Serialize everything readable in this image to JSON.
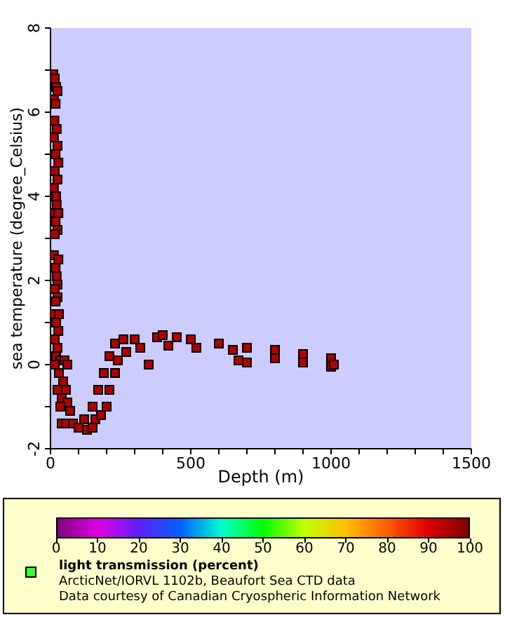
{
  "chart_data": {
    "type": "scatter",
    "xlabel": "Depth (m)",
    "ylabel": "sea temperature (degree_Celsius)",
    "x": [
      10,
      15,
      20,
      25,
      12,
      18,
      14,
      22,
      12,
      25,
      18,
      28,
      15,
      25,
      12,
      20,
      22,
      15,
      28,
      18,
      25,
      15,
      12,
      28,
      18,
      22,
      25,
      15,
      25,
      18,
      12,
      30,
      20,
      28,
      15,
      25,
      20,
      35,
      15,
      50,
      60,
      30,
      45,
      25,
      55,
      40,
      60,
      35,
      70,
      40,
      55,
      80,
      100,
      130,
      150,
      120,
      160,
      180,
      150,
      200,
      170,
      210,
      190,
      230,
      210,
      240,
      230,
      270,
      260,
      300,
      320,
      350,
      380,
      400,
      420,
      450,
      500,
      520,
      600,
      650,
      670,
      700,
      700,
      800,
      800,
      900,
      900,
      1000,
      1000,
      1010
    ],
    "values": [
      6.9,
      6.8,
      6.6,
      6.5,
      6.3,
      6.2,
      5.8,
      5.6,
      5.4,
      5.2,
      5.0,
      4.8,
      4.6,
      4.4,
      4.2,
      4.0,
      3.8,
      3.6,
      3.6,
      3.4,
      3.2,
      3.1,
      2.6,
      2.5,
      2.3,
      2.1,
      1.9,
      1.8,
      1.6,
      1.5,
      1.2,
      1.2,
      1.0,
      0.8,
      0.6,
      0.4,
      0.2,
      0.1,
      0.0,
      0.1,
      0.0,
      -0.2,
      -0.4,
      -0.6,
      -0.6,
      -0.8,
      -0.9,
      -1.0,
      -1.1,
      -1.4,
      -1.4,
      -1.4,
      -1.5,
      -1.55,
      -1.5,
      -1.3,
      -1.3,
      -1.2,
      -1.0,
      -1.0,
      -0.6,
      -0.6,
      -0.2,
      -0.2,
      0.2,
      0.1,
      0.5,
      0.3,
      0.6,
      0.6,
      0.4,
      0.0,
      0.65,
      0.7,
      0.45,
      0.65,
      0.6,
      0.4,
      0.5,
      0.35,
      0.1,
      0.05,
      0.4,
      0.35,
      0.15,
      0.25,
      0.05,
      0.15,
      -0.05,
      0.0
    ],
    "cvalues": [
      95,
      95,
      95,
      95,
      95,
      95,
      95,
      95,
      95,
      95,
      95,
      95,
      95,
      95,
      95,
      95,
      95,
      95,
      95,
      95,
      95,
      95,
      95,
      95,
      95,
      95,
      95,
      95,
      95,
      95,
      95,
      95,
      95,
      95,
      95,
      95,
      95,
      95,
      95,
      95,
      95,
      95,
      95,
      95,
      95,
      95,
      95,
      95,
      95,
      95,
      95,
      95,
      95,
      95,
      95,
      95,
      95,
      95,
      95,
      95,
      95,
      95,
      95,
      95,
      95,
      95,
      95,
      95,
      95,
      95,
      95,
      95,
      95,
      95,
      95,
      95,
      95,
      95,
      95,
      95,
      95,
      95,
      95,
      95,
      95,
      95,
      95,
      95,
      95,
      95
    ],
    "marker": "square",
    "xlim": [
      0,
      1500
    ],
    "xticks": [
      0,
      {
        "value": 100,
        "label": null
      },
      {
        "value": 200,
        "label": null
      },
      {
        "value": 300,
        "label": null
      },
      {
        "value": 400,
        "label": null
      },
      500,
      {
        "value": 600,
        "label": null
      },
      {
        "value": 700,
        "label": null
      },
      {
        "value": 800,
        "label": null
      },
      {
        "value": 900,
        "label": null
      },
      1000,
      {
        "value": 1100,
        "label": null
      },
      {
        "value": 1200,
        "label": null
      },
      {
        "value": 1300,
        "label": null
      },
      {
        "value": 1400,
        "label": null
      },
      1500
    ],
    "ylim": [
      -2,
      8
    ],
    "yticks": [
      -2,
      {
        "value": -1,
        "label": null
      },
      0,
      {
        "value": 1,
        "label": null
      },
      2,
      {
        "value": 3,
        "label": null
      },
      4,
      {
        "value": 5,
        "label": null
      },
      6,
      {
        "value": 7,
        "label": null
      },
      8
    ],
    "clabel": "light transmission (percent)",
    "clim": [
      0,
      100
    ],
    "cticks": [
      0,
      10,
      20,
      30,
      40,
      50,
      60,
      70,
      80,
      90,
      100
    ],
    "annotations": [
      "ArcticNet/IORVL 1102b, Beaufort Sea CTD data",
      "Data courtesy of Canadian Cryospheric Information Network"
    ]
  }
}
